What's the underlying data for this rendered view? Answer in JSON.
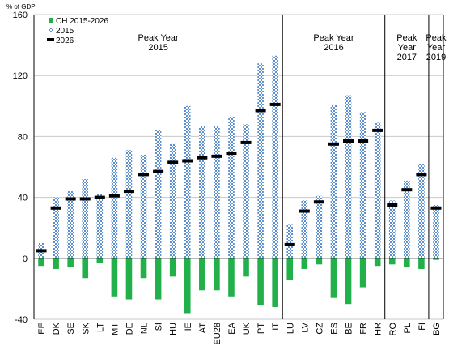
{
  "chart_data": {
    "type": "bar",
    "ylabel": "% of GDP",
    "ylim": [
      -40,
      160
    ],
    "yticks": [
      -40,
      0,
      40,
      80,
      120,
      160
    ],
    "grid": true,
    "legend_placement": "top-left",
    "categories": [
      "EE",
      "DK",
      "SE",
      "SK",
      "LT",
      "MT",
      "DE",
      "NL",
      "SI",
      "HU",
      "IE",
      "AT",
      "EU28",
      "EA",
      "UK",
      "PT",
      "IT",
      "LU",
      "LV",
      "CZ",
      "ES",
      "BE",
      "FR",
      "HR",
      "RO",
      "PL",
      "FI",
      "BG"
    ],
    "series": [
      {
        "name": "CH 2015-2026",
        "kind": "bar",
        "color": "#22b04b",
        "values": [
          -5,
          -7,
          -6,
          -13,
          -3,
          -25,
          -27,
          -13,
          -27,
          -12,
          -36,
          -21,
          -21,
          -25,
          -12,
          -31,
          -32,
          -14,
          -7,
          -4,
          -26,
          -30,
          -19,
          -5,
          -4,
          -6,
          -7,
          -1
        ]
      },
      {
        "name": "2015",
        "kind": "hatched-bar",
        "color": "#5b8fd0",
        "values": [
          10,
          40,
          44,
          52,
          42,
          66,
          71,
          68,
          84,
          75,
          100,
          87,
          87,
          93,
          88,
          128,
          133,
          22,
          38,
          41,
          101,
          107,
          96,
          89,
          38,
          51,
          62,
          35
        ]
      },
      {
        "name": "2026",
        "kind": "marker",
        "color": "#000000",
        "values": [
          5,
          33,
          39,
          39,
          40,
          41,
          44,
          55,
          57,
          63,
          64,
          66,
          67,
          69,
          76,
          97,
          101,
          9,
          31,
          37,
          75,
          77,
          77,
          84,
          35,
          45,
          55,
          33
        ]
      }
    ],
    "groups": [
      {
        "label_lines": [
          "Peak Year",
          "2015"
        ],
        "start": 0,
        "end": 16
      },
      {
        "label_lines": [
          "Peak Year",
          "2016"
        ],
        "start": 17,
        "end": 23
      },
      {
        "label_lines": [
          "Peak",
          "Year",
          "2017"
        ],
        "start": 24,
        "end": 26
      },
      {
        "label_lines": [
          "Peak",
          "Year",
          "2019"
        ],
        "start": 27,
        "end": 27
      }
    ]
  }
}
